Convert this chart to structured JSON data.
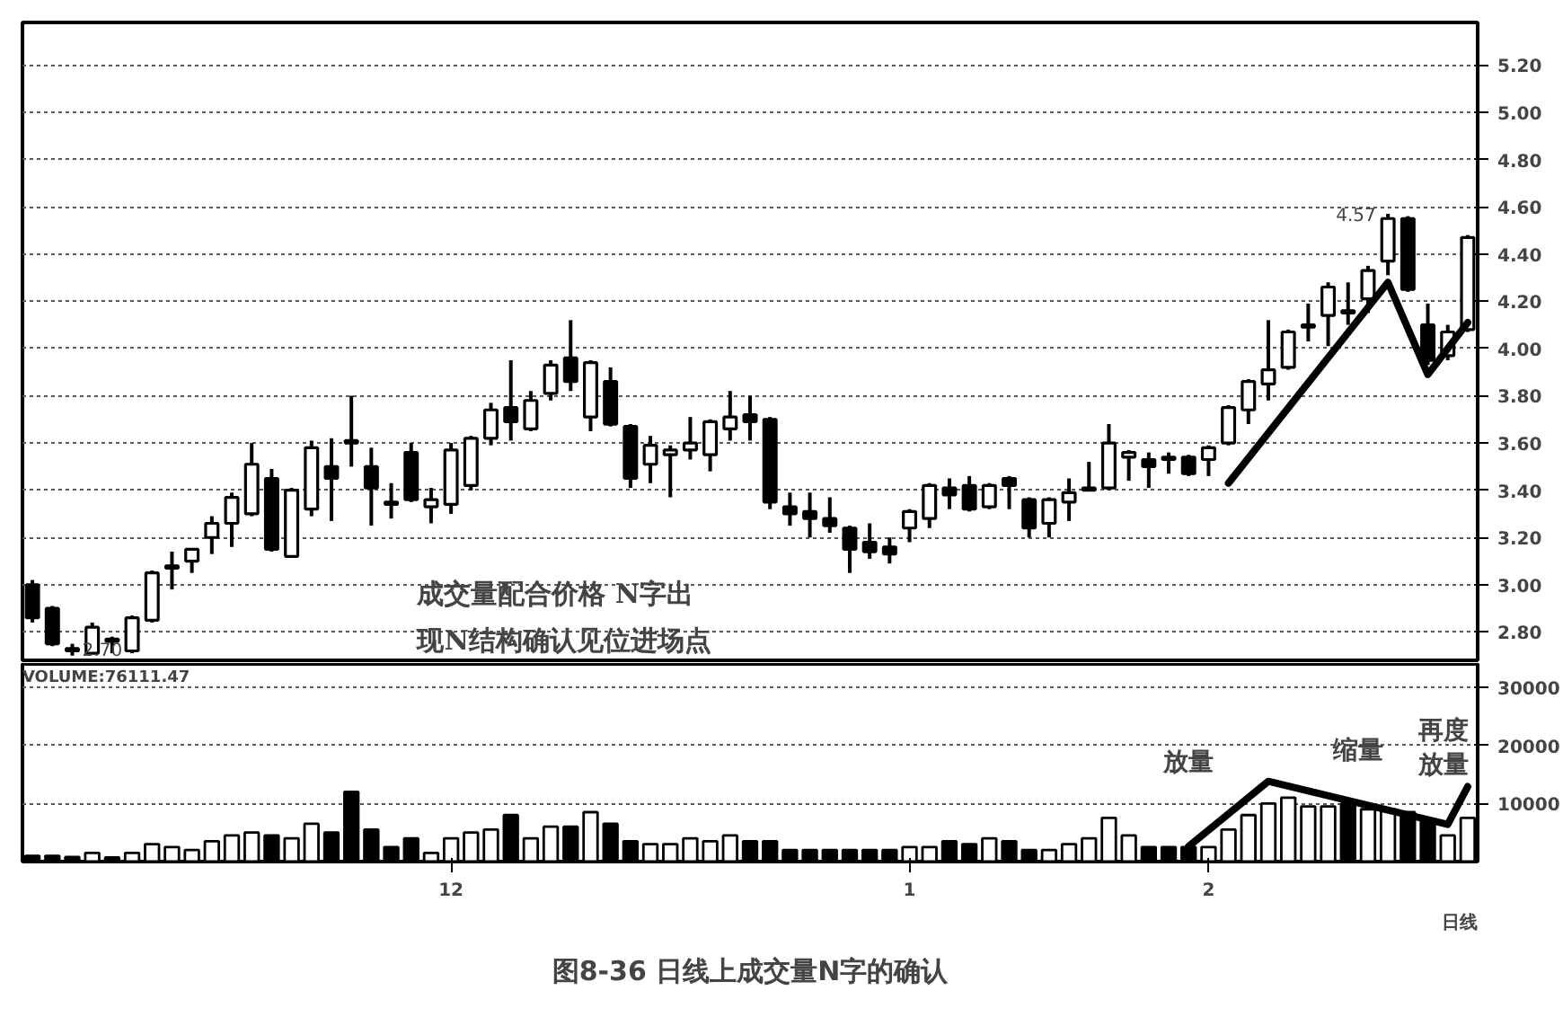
{
  "chart_data": [
    {
      "type": "candlestick",
      "tick_labels": "y",
      "grid": "y",
      "ylim": [
        2.68,
        5.38
      ],
      "yticks": [
        {
          "value": 2.8,
          "label": "2.80"
        },
        {
          "value": 3.0,
          "label": "3.00"
        },
        {
          "value": 3.2,
          "label": "3.20"
        },
        {
          "value": 3.4,
          "label": "3.40"
        },
        {
          "value": 3.6,
          "label": "3.60"
        },
        {
          "value": 3.8,
          "label": "3.80"
        },
        {
          "value": 4.0,
          "label": "4.00"
        },
        {
          "value": 4.2,
          "label": "4.20"
        },
        {
          "value": 4.4,
          "label": "4.40"
        },
        {
          "value": 4.6,
          "label": "4.60"
        },
        {
          "value": 4.8,
          "label": "4.80"
        },
        {
          "value": 5.0,
          "label": "5.00"
        },
        {
          "value": 5.2,
          "label": "5.20"
        }
      ],
      "categories": [
        null,
        null,
        null,
        null,
        null,
        null,
        null,
        null,
        null,
        null,
        null,
        null,
        null,
        null,
        null,
        null,
        null,
        null,
        null,
        null,
        null,
        null,
        null,
        null,
        null,
        null,
        null,
        null,
        null,
        null,
        null,
        null,
        null,
        null,
        null,
        null,
        null,
        null,
        null,
        null,
        null,
        null,
        null,
        null,
        null,
        null,
        null,
        null,
        null,
        null,
        null,
        null,
        null,
        null,
        null,
        null,
        null,
        null,
        null,
        null,
        null,
        null,
        null,
        null,
        null,
        null,
        null,
        null,
        null,
        null,
        null,
        null,
        null
      ],
      "ohlc": [
        [
          3.0,
          3.02,
          2.84,
          2.86
        ],
        [
          2.9,
          2.91,
          2.74,
          2.75
        ],
        [
          2.73,
          2.75,
          2.7,
          2.72
        ],
        [
          2.71,
          2.84,
          2.71,
          2.82
        ],
        [
          2.77,
          2.78,
          2.71,
          2.76
        ],
        [
          2.72,
          2.87,
          2.71,
          2.86
        ],
        [
          2.85,
          3.06,
          2.84,
          3.05
        ],
        [
          3.07,
          3.14,
          2.98,
          3.08
        ],
        [
          3.1,
          3.15,
          3.05,
          3.15
        ],
        [
          3.2,
          3.29,
          3.13,
          3.26
        ],
        [
          3.26,
          3.39,
          3.16,
          3.37
        ],
        [
          3.3,
          3.6,
          3.29,
          3.51
        ],
        [
          3.45,
          3.49,
          3.14,
          3.15
        ],
        [
          3.12,
          3.41,
          3.12,
          3.4
        ],
        [
          3.32,
          3.61,
          3.29,
          3.58
        ],
        [
          3.5,
          3.62,
          3.27,
          3.45
        ],
        [
          3.61,
          3.8,
          3.5,
          3.6
        ],
        [
          3.5,
          3.58,
          3.25,
          3.41
        ],
        [
          3.35,
          3.43,
          3.28,
          3.34
        ],
        [
          3.56,
          3.6,
          3.35,
          3.36
        ],
        [
          3.33,
          3.41,
          3.26,
          3.36
        ],
        [
          3.34,
          3.6,
          3.3,
          3.57
        ],
        [
          3.42,
          3.63,
          3.4,
          3.62
        ],
        [
          3.62,
          3.77,
          3.59,
          3.74
        ],
        [
          3.75,
          3.95,
          3.61,
          3.69
        ],
        [
          3.66,
          3.82,
          3.65,
          3.78
        ],
        [
          3.81,
          3.95,
          3.78,
          3.93
        ],
        [
          3.96,
          4.12,
          3.82,
          3.86
        ],
        [
          3.71,
          3.95,
          3.65,
          3.94
        ],
        [
          3.86,
          3.92,
          3.67,
          3.68
        ],
        [
          3.67,
          3.68,
          3.41,
          3.45
        ],
        [
          3.51,
          3.63,
          3.43,
          3.59
        ],
        [
          3.55,
          3.59,
          3.37,
          3.57
        ],
        [
          3.57,
          3.71,
          3.53,
          3.6
        ],
        [
          3.55,
          3.7,
          3.48,
          3.69
        ],
        [
          3.66,
          3.82,
          3.61,
          3.71
        ],
        [
          3.72,
          3.8,
          3.61,
          3.69
        ],
        [
          3.7,
          3.71,
          3.32,
          3.35
        ],
        [
          3.33,
          3.39,
          3.25,
          3.3
        ],
        [
          3.31,
          3.39,
          3.2,
          3.28
        ],
        [
          3.28,
          3.37,
          3.22,
          3.25
        ],
        [
          3.24,
          3.25,
          3.05,
          3.15
        ],
        [
          3.18,
          3.26,
          3.11,
          3.14
        ],
        [
          3.16,
          3.2,
          3.09,
          3.13
        ],
        [
          3.24,
          3.32,
          3.18,
          3.31
        ],
        [
          3.28,
          3.43,
          3.24,
          3.42
        ],
        [
          3.41,
          3.45,
          3.32,
          3.38
        ],
        [
          3.42,
          3.46,
          3.31,
          3.32
        ],
        [
          3.33,
          3.43,
          3.32,
          3.42
        ],
        [
          3.45,
          3.46,
          3.32,
          3.42
        ],
        [
          3.36,
          3.37,
          3.2,
          3.24
        ],
        [
          3.26,
          3.37,
          3.2,
          3.36
        ],
        [
          3.35,
          3.45,
          3.27,
          3.39
        ],
        [
          3.4,
          3.52,
          3.4,
          3.41
        ],
        [
          3.41,
          3.68,
          3.4,
          3.6
        ],
        [
          3.54,
          3.57,
          3.44,
          3.56
        ],
        [
          3.53,
          3.56,
          3.41,
          3.5
        ],
        [
          3.54,
          3.56,
          3.47,
          3.53
        ],
        [
          3.54,
          3.55,
          3.46,
          3.47
        ],
        [
          3.53,
          3.59,
          3.46,
          3.58
        ],
        [
          3.6,
          3.76,
          3.59,
          3.75
        ],
        [
          3.74,
          3.87,
          3.68,
          3.86
        ],
        [
          3.85,
          4.12,
          3.78,
          3.91
        ],
        [
          3.92,
          4.08,
          3.91,
          4.07
        ],
        [
          4.09,
          4.19,
          4.03,
          4.1
        ],
        [
          4.14,
          4.28,
          4.01,
          4.26
        ],
        [
          4.16,
          4.28,
          4.1,
          4.15
        ],
        [
          4.21,
          4.35,
          4.15,
          4.33
        ],
        [
          4.37,
          4.57,
          4.31,
          4.55
        ],
        [
          4.55,
          4.56,
          4.24,
          4.25
        ],
        [
          4.1,
          4.19,
          3.93,
          3.95
        ],
        [
          3.97,
          4.1,
          3.95,
          4.07
        ],
        [
          4.08,
          4.48,
          4.07,
          4.47
        ]
      ],
      "series": [
        {
          "type": "line",
          "color": "#000000",
          "values": [
            null,
            null,
            null,
            null,
            null,
            null,
            null,
            null,
            null,
            null,
            null,
            null,
            null,
            null,
            null,
            null,
            null,
            null,
            null,
            null,
            null,
            null,
            null,
            null,
            null,
            null,
            null,
            null,
            null,
            null,
            null,
            null,
            null,
            null,
            null,
            null,
            null,
            null,
            null,
            null,
            null,
            null,
            null,
            null,
            null,
            null,
            null,
            null,
            null,
            null,
            null,
            null,
            null,
            null,
            null,
            null,
            null,
            null,
            null,
            null,
            3.43,
            null,
            null,
            null,
            null,
            null,
            null,
            null,
            4.28,
            null,
            3.89,
            null,
            4.11
          ]
        }
      ],
      "annotations": [
        "4.57",
        "2.70",
        "成交量配合价格 N字出现N结构确认见位进场点"
      ]
    },
    {
      "type": "bar",
      "grid": "y",
      "ylim": [
        0,
        34000
      ],
      "yticks": [
        10000,
        20000,
        30000
      ],
      "title": "图8-36 日线上成交量N字的确认",
      "categories": [
        null,
        null,
        null,
        null,
        null,
        null,
        null,
        null,
        null,
        null,
        null,
        null,
        null,
        null,
        null,
        null,
        null,
        null,
        null,
        null,
        null,
        "12",
        null,
        null,
        null,
        null,
        null,
        null,
        null,
        null,
        null,
        null,
        null,
        null,
        null,
        null,
        null,
        null,
        null,
        null,
        null,
        null,
        null,
        null,
        "1",
        null,
        null,
        null,
        null,
        null,
        null,
        null,
        null,
        null,
        null,
        null,
        null,
        null,
        null,
        "2",
        null,
        null,
        null,
        null,
        null,
        null,
        null,
        null,
        null,
        null,
        null,
        null,
        null
      ],
      "values": [
        1000,
        1000,
        800,
        1500,
        700,
        1500,
        3000,
        2500,
        2000,
        3500,
        4500,
        5000,
        4500,
        4000,
        6500,
        5000,
        12000,
        5500,
        2500,
        4000,
        1500,
        4000,
        5000,
        5500,
        8000,
        4000,
        6000,
        6000,
        8500,
        6500,
        3500,
        3000,
        3000,
        4000,
        3500,
        4500,
        3500,
        3500,
        2000,
        2000,
        2000,
        2000,
        2000,
        2000,
        2500,
        2500,
        3500,
        3000,
        4000,
        3500,
        2000,
        2000,
        3000,
        4000,
        7500,
        4500,
        2500,
        2500,
        2500,
        2500,
        5500,
        8000,
        10000,
        11000,
        9500,
        9500,
        10000,
        9000,
        9000,
        8500,
        7000,
        4500,
        7500
      ],
      "colors": [
        "#000000",
        "#000000",
        "#000000",
        "#ffffff",
        "#000000",
        "#ffffff",
        "#ffffff",
        "#ffffff",
        "#ffffff",
        "#ffffff",
        "#ffffff",
        "#ffffff",
        "#000000",
        "#ffffff",
        "#ffffff",
        "#000000",
        "#000000",
        "#000000",
        "#000000",
        "#000000",
        "#ffffff",
        "#ffffff",
        "#ffffff",
        "#ffffff",
        "#000000",
        "#ffffff",
        "#ffffff",
        "#000000",
        "#ffffff",
        "#000000",
        "#000000",
        "#ffffff",
        "#ffffff",
        "#ffffff",
        "#ffffff",
        "#ffffff",
        "#000000",
        "#000000",
        "#000000",
        "#000000",
        "#000000",
        "#000000",
        "#000000",
        "#000000",
        "#ffffff",
        "#ffffff",
        "#000000",
        "#000000",
        "#ffffff",
        "#000000",
        "#000000",
        "#ffffff",
        "#ffffff",
        "#ffffff",
        "#ffffff",
        "#ffffff",
        "#000000",
        "#000000",
        "#000000",
        "#ffffff",
        "#ffffff",
        "#ffffff",
        "#ffffff",
        "#ffffff",
        "#ffffff",
        "#ffffff",
        "#000000",
        "#ffffff",
        "#ffffff",
        "#000000",
        "#000000",
        "#ffffff",
        "#ffffff"
      ],
      "series": [
        {
          "type": "line",
          "color": "#000000",
          "values": [
            null,
            null,
            null,
            null,
            null,
            null,
            null,
            null,
            null,
            null,
            null,
            null,
            null,
            null,
            null,
            null,
            null,
            null,
            null,
            null,
            null,
            null,
            null,
            null,
            null,
            null,
            null,
            null,
            null,
            null,
            null,
            null,
            null,
            null,
            null,
            null,
            null,
            null,
            null,
            null,
            null,
            null,
            null,
            null,
            null,
            null,
            null,
            null,
            null,
            null,
            null,
            null,
            null,
            null,
            null,
            null,
            null,
            null,
            2600,
            null,
            null,
            null,
            13800,
            null,
            null,
            null,
            null,
            null,
            null,
            null,
            null,
            6400,
            12900
          ]
        }
      ],
      "annotations": [
        "VOLUME:76111.47",
        "放量",
        "缩量",
        "再度放量",
        "日线"
      ]
    }
  ]
}
